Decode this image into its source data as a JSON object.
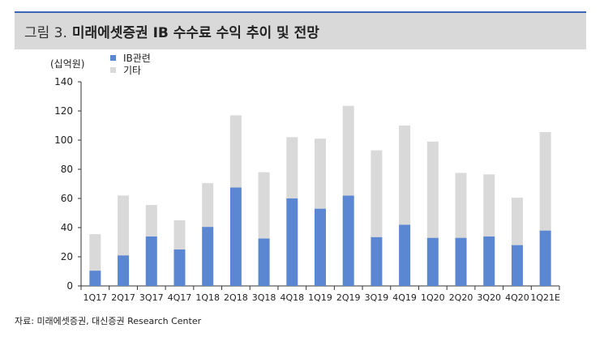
{
  "header": {
    "figure_label": "그림 3.",
    "title": "미래에셋증권 IB 수수료 수익 추이 및 전망"
  },
  "source": "자료: 미래에셋증권, 대신증권 Research Center",
  "colors": {
    "ib": "#5b86d1",
    "other": "#d9d9d9",
    "title_bg": "#d9d9d9",
    "rule": "#3a66b3"
  },
  "chart_data": {
    "type": "bar",
    "stacked": true,
    "unit_label": "(십억원)",
    "categories": [
      "1Q17",
      "2Q17",
      "3Q17",
      "4Q17",
      "1Q18",
      "2Q18",
      "3Q18",
      "4Q18",
      "1Q19",
      "2Q19",
      "3Q19",
      "4Q19",
      "1Q20",
      "2Q20",
      "3Q20",
      "4Q20",
      "1Q21E"
    ],
    "series": [
      {
        "name": "IB관련",
        "values": [
          10.5,
          21,
          34,
          25,
          40.5,
          67.5,
          32.5,
          60,
          53,
          62,
          33.5,
          42,
          33,
          33,
          34,
          28,
          38
        ]
      },
      {
        "name": "기타",
        "values": [
          25,
          41,
          21.5,
          20,
          30,
          49.5,
          45.5,
          42,
          48,
          61.5,
          59.5,
          68,
          66,
          44.5,
          42.5,
          32.5,
          67.5
        ]
      }
    ],
    "ylim": [
      0,
      140
    ],
    "yticks": [
      0,
      20,
      40,
      60,
      80,
      100,
      120,
      140
    ],
    "legend_position": "top-left",
    "grid": false
  }
}
